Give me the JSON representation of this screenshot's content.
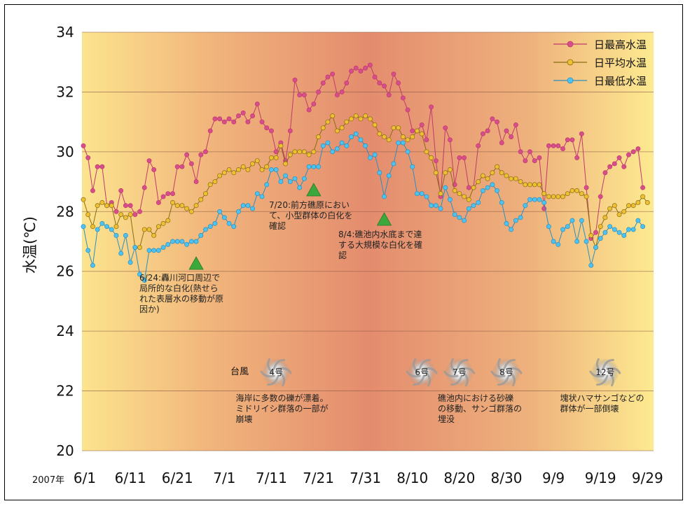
{
  "chart_data": {
    "type": "line",
    "year_label": "2007年",
    "ylabel": "水温(℃)",
    "ylim": [
      20,
      34
    ],
    "yticks": [
      20,
      22,
      24,
      26,
      28,
      30,
      32,
      34
    ],
    "x_tick_labels": [
      "6/1",
      "6/11",
      "6/21",
      "7/1",
      "7/11",
      "7/21",
      "7/31",
      "8/10",
      "8/20",
      "8/30",
      "9/9",
      "9/19",
      "9/29"
    ],
    "x_tick_days": [
      0,
      10,
      20,
      30,
      40,
      50,
      60,
      70,
      80,
      90,
      100,
      110,
      120
    ],
    "x_range": [
      0,
      121
    ],
    "grid": true,
    "legend_position": "top-right",
    "series": [
      {
        "name": "日最高水温",
        "color": "#c0386e",
        "fill": "#d64f8a",
        "values": [
          30.2,
          29.8,
          28.7,
          29.5,
          29.5,
          28.2,
          28.3,
          28.0,
          28.7,
          28.2,
          28.2,
          27.9,
          28.0,
          28.8,
          29.7,
          29.4,
          28.3,
          28.5,
          28.6,
          28.6,
          29.5,
          29.5,
          29.9,
          29.6,
          29.0,
          29.9,
          30.0,
          30.7,
          31.1,
          31.1,
          31.0,
          31.1,
          31.0,
          31.2,
          31.3,
          31.0,
          31.2,
          31.6,
          31.0,
          30.8,
          30.7,
          30.0,
          30.3,
          29.7,
          30.7,
          32.4,
          31.9,
          31.9,
          31.4,
          31.6,
          32.0,
          32.3,
          32.5,
          32.6,
          31.9,
          32.0,
          32.3,
          32.7,
          32.8,
          32.7,
          32.8,
          32.9,
          32.5,
          32.3,
          32.2,
          31.9,
          32.6,
          32.3,
          31.8,
          31.4,
          30.7,
          30.7,
          30.9,
          30.4,
          31.5,
          29.7,
          28.5,
          30.8,
          30.4,
          28.9,
          29.8,
          29.8,
          28.8,
          28.8,
          30.2,
          30.6,
          30.7,
          31.1,
          31.0,
          30.3,
          30.7,
          30.5,
          30.9,
          30.0,
          29.7,
          30.0,
          29.7,
          29.8,
          28.1,
          30.2,
          30.2,
          30.2,
          30.1,
          30.4,
          30.4,
          29.8,
          30.6,
          28.8,
          27.1,
          27.3,
          28.5,
          29.3,
          29.5,
          29.6,
          29.8,
          29.5,
          29.9,
          30.0,
          30.1,
          28.8
        ]
      },
      {
        "name": "日平均水温",
        "color": "#8a6d10",
        "fill": "#f0c033",
        "values": [
          28.4,
          27.9,
          27.5,
          28.2,
          28.3,
          28.2,
          28.2,
          27.5,
          27.9,
          27.8,
          27.9,
          26.8,
          26.8,
          27.4,
          27.4,
          27.2,
          27.5,
          27.6,
          27.7,
          28.3,
          28.2,
          28.2,
          28.1,
          28.0,
          28.2,
          28.4,
          28.6,
          28.9,
          29.0,
          29.2,
          29.3,
          29.4,
          29.3,
          29.4,
          29.5,
          29.4,
          29.6,
          29.7,
          29.4,
          29.5,
          29.8,
          29.8,
          30.2,
          29.6,
          29.9,
          30.0,
          30.0,
          30.0,
          29.9,
          30.0,
          30.5,
          30.8,
          31.0,
          31.2,
          30.7,
          30.8,
          31.0,
          31.1,
          31.2,
          31.1,
          31.2,
          31.1,
          30.9,
          30.6,
          30.5,
          30.4,
          30.8,
          30.8,
          30.5,
          30.4,
          30.5,
          30.7,
          30.6,
          30.0,
          29.8,
          29.3,
          28.6,
          29.3,
          29.4,
          28.7,
          28.6,
          28.5,
          28.4,
          28.8,
          29.0,
          29.2,
          29.1,
          29.3,
          29.5,
          29.3,
          29.2,
          29.1,
          29.1,
          29.0,
          28.9,
          28.9,
          28.9,
          28.9,
          28.6,
          28.5,
          28.5,
          28.5,
          28.5,
          28.6,
          28.7,
          28.7,
          28.6,
          28.5,
          27.2,
          26.8,
          27.5,
          27.8,
          28.1,
          28.2,
          27.9,
          28.0,
          28.2,
          28.2,
          28.3,
          28.5,
          28.3
        ]
      },
      {
        "name": "日最低水温",
        "color": "#2a8fc0",
        "fill": "#4fc3f0",
        "values": [
          27.5,
          26.7,
          26.2,
          27.4,
          27.6,
          27.5,
          27.4,
          27.2,
          26.6,
          27.2,
          26.3,
          26.8,
          25.9,
          25.7,
          26.7,
          26.7,
          26.7,
          26.8,
          26.9,
          27.0,
          27.0,
          27.0,
          26.9,
          27.0,
          27.0,
          27.2,
          27.4,
          27.5,
          27.6,
          28.0,
          27.8,
          27.6,
          27.5,
          28.0,
          28.2,
          28.2,
          28.1,
          28.6,
          28.5,
          28.9,
          29.4,
          29.4,
          29.0,
          29.2,
          29.0,
          29.1,
          28.8,
          29.1,
          29.5,
          29.5,
          29.5,
          30.2,
          30.3,
          30.0,
          30.1,
          30.3,
          30.2,
          30.5,
          30.6,
          30.4,
          30.2,
          29.8,
          29.9,
          29.3,
          28.5,
          29.2,
          29.6,
          30.3,
          30.3,
          30.0,
          29.5,
          28.6,
          28.6,
          28.5,
          28.2,
          28.2,
          28.1,
          28.8,
          28.4,
          27.9,
          27.8,
          27.7,
          28.1,
          28.2,
          28.3,
          28.7,
          28.8,
          28.9,
          28.7,
          28.3,
          27.6,
          27.4,
          27.7,
          27.8,
          28.2,
          28.4,
          28.4,
          28.4,
          28.3,
          27.5,
          27.0,
          26.9,
          27.4,
          27.5,
          27.7,
          27.0,
          27.7,
          27.0,
          26.2,
          26.8,
          27.1,
          27.3,
          27.5,
          27.4,
          27.3,
          27.2,
          27.4,
          27.4,
          27.7,
          27.5
        ]
      }
    ],
    "annotations": [
      {
        "day": 24,
        "value": 26.0,
        "text_lines": [
          "6/24:轟川河口周辺で",
          "局所的な白化(熱せら",
          "れた表層水の移動が原",
          "因か)"
        ]
      },
      {
        "day": 49,
        "value": 28.5,
        "text_lines": [
          "7/20:前方礁原におい",
          "て、小型群体の白化を",
          "確認"
        ]
      },
      {
        "day": 64,
        "value": 27.5,
        "text_lines": [
          "8/4:礁池内水底まで達",
          "する大規模な白化を確",
          "認"
        ]
      }
    ],
    "typhoon_label": "台風",
    "typhoons": [
      {
        "label": "4号",
        "day": 41
      },
      {
        "label": "6号",
        "day": 72
      },
      {
        "label": "7号",
        "day": 80
      },
      {
        "label": "8号",
        "day": 90
      },
      {
        "label": "12号",
        "day": 111
      }
    ],
    "event_notes": [
      {
        "day": 33,
        "text_lines": [
          "海岸に多数の礫が漂着。",
          "ミドリイシ群落の一部が",
          "崩壊"
        ]
      },
      {
        "day": 76,
        "text_lines": [
          "礁池内における砂礫",
          "の移動、サンゴ群落の",
          "埋没"
        ]
      },
      {
        "day": 102,
        "text_lines": [
          "塊状ハマサンゴなどの",
          "群体が一部倒壊"
        ]
      }
    ]
  }
}
